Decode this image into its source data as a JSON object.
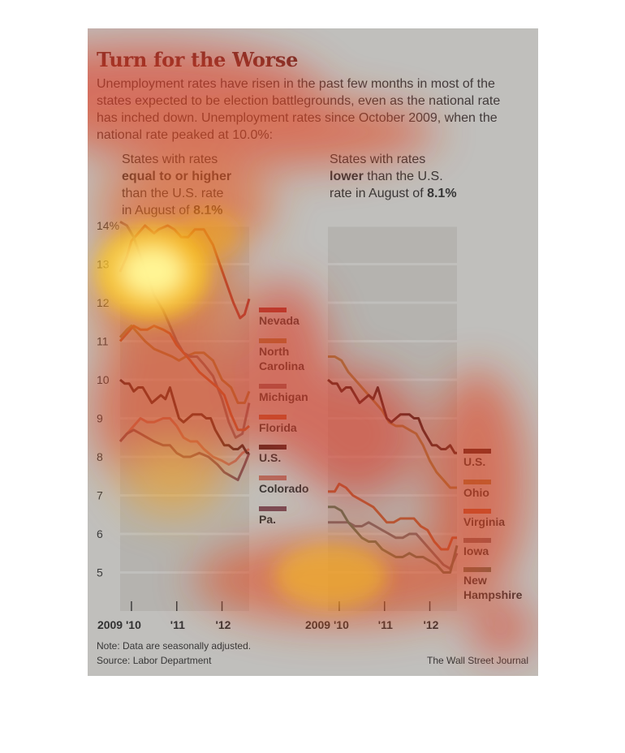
{
  "title": "Turn for the Worse",
  "intro": "Unemployment rates have risen in the past few months in most of the states expected to be election battlegrounds, even as the national rate has inched down. Unemployment rates since October 2009, when the national rate peaked at 10.0%:",
  "left_head": {
    "line1": "States with rates",
    "bold": "equal to or higher",
    "line3": "than the U.S. rate",
    "line4_pre": "in August of ",
    "line4_bold": "8.1%"
  },
  "right_head": {
    "line1": "States with rates",
    "bold": "lower",
    "line2_rest": " than the U.S.",
    "line3_pre": "rate in August of ",
    "line3_bold": "8.1%"
  },
  "footer": {
    "note": "Note: Data are seasonally adjusted.",
    "source": "Source: Labor Department",
    "credit": "The Wall Street Journal"
  },
  "chart_data": [
    {
      "type": "line",
      "title": "States with rates equal to or higher than the U.S. rate in August of 8.1%",
      "ylim": [
        4,
        14
      ],
      "yticks": [
        "5",
        "6",
        "7",
        "8",
        "9",
        "10",
        "11",
        "12",
        "13",
        "14%"
      ],
      "ytick_values": [
        5,
        6,
        7,
        8,
        9,
        10,
        11,
        12,
        13,
        14
      ],
      "xlim": [
        2009.75,
        2012.6
      ],
      "xticks": [
        "2009 '10",
        "'11",
        "'12"
      ],
      "xtick_values": [
        2010,
        2011,
        2012
      ],
      "series": [
        {
          "name": "Nevada",
          "color": "#c5282a",
          "x": [
            2009.75,
            2009.9,
            2010.0,
            2010.15,
            2010.3,
            2010.5,
            2010.6,
            2010.8,
            2010.95,
            2011.1,
            2011.25,
            2011.4,
            2011.6,
            2011.8,
            2011.95,
            2012.1,
            2012.25,
            2012.4,
            2012.5,
            2012.6
          ],
          "y": [
            12.8,
            13.2,
            13.6,
            13.8,
            14.0,
            13.8,
            13.9,
            14.0,
            13.9,
            13.7,
            13.7,
            13.9,
            13.9,
            13.5,
            13.0,
            12.5,
            12.0,
            11.6,
            11.7,
            12.1
          ]
        },
        {
          "name": "North Carolina",
          "color": "#c08a3c",
          "x": [
            2009.75,
            2009.9,
            2010.0,
            2010.15,
            2010.3,
            2010.5,
            2010.7,
            2010.9,
            2011.05,
            2011.2,
            2011.4,
            2011.6,
            2011.8,
            2012.0,
            2012.2,
            2012.35,
            2012.5,
            2012.6
          ],
          "y": [
            11.1,
            11.3,
            11.4,
            11.2,
            11.0,
            10.8,
            10.7,
            10.6,
            10.5,
            10.6,
            10.7,
            10.7,
            10.5,
            10.0,
            9.8,
            9.4,
            9.4,
            9.7
          ]
        },
        {
          "name": "Michigan",
          "color": "#9a6a6e",
          "x": [
            2009.75,
            2009.9,
            2010.05,
            2010.2,
            2010.35,
            2010.5,
            2010.7,
            2010.85,
            2011.0,
            2011.15,
            2011.3,
            2011.45,
            2011.6,
            2011.8,
            2012.0,
            2012.15,
            2012.3,
            2012.45,
            2012.6
          ],
          "y": [
            14.1,
            14.0,
            13.7,
            13.2,
            12.7,
            12.2,
            11.8,
            11.4,
            11.0,
            10.7,
            10.6,
            10.6,
            10.4,
            10.1,
            9.5,
            8.9,
            8.5,
            8.6,
            9.4
          ]
        },
        {
          "name": "Florida",
          "color": "#dc5c2a",
          "x": [
            2009.75,
            2009.9,
            2010.05,
            2010.2,
            2010.35,
            2010.5,
            2010.7,
            2010.85,
            2011.0,
            2011.15,
            2011.3,
            2011.5,
            2011.7,
            2011.9,
            2012.05,
            2012.2,
            2012.35,
            2012.5,
            2012.6
          ],
          "y": [
            11.0,
            11.2,
            11.4,
            11.3,
            11.3,
            11.4,
            11.3,
            11.2,
            10.9,
            10.7,
            10.5,
            10.2,
            10.0,
            9.8,
            9.6,
            9.1,
            8.7,
            8.7,
            8.8
          ]
        },
        {
          "name": "U.S.",
          "color": "#3c0e0e",
          "x": [
            2009.75,
            2009.85,
            2009.95,
            2010.05,
            2010.15,
            2010.25,
            2010.35,
            2010.45,
            2010.55,
            2010.65,
            2010.75,
            2010.85,
            2010.95,
            2011.05,
            2011.15,
            2011.25,
            2011.35,
            2011.45,
            2011.55,
            2011.65,
            2011.75,
            2011.85,
            2011.95,
            2012.05,
            2012.15,
            2012.25,
            2012.35,
            2012.45,
            2012.55,
            2012.6
          ],
          "y": [
            10.0,
            9.9,
            9.9,
            9.7,
            9.8,
            9.8,
            9.6,
            9.4,
            9.5,
            9.6,
            9.5,
            9.8,
            9.4,
            9.0,
            8.9,
            9.0,
            9.1,
            9.1,
            9.1,
            9.0,
            9.0,
            8.7,
            8.5,
            8.3,
            8.3,
            8.2,
            8.2,
            8.3,
            8.1,
            8.1
          ]
        },
        {
          "name": "Colorado",
          "color": "#e07868",
          "x": [
            2009.75,
            2009.9,
            2010.05,
            2010.2,
            2010.35,
            2010.5,
            2010.7,
            2010.85,
            2011.0,
            2011.15,
            2011.3,
            2011.45,
            2011.6,
            2011.8,
            2012.0,
            2012.15,
            2012.3,
            2012.45,
            2012.6
          ],
          "y": [
            8.4,
            8.6,
            8.8,
            9.0,
            8.9,
            8.9,
            9.0,
            9.0,
            8.8,
            8.5,
            8.4,
            8.4,
            8.2,
            8.0,
            7.9,
            7.8,
            7.9,
            8.1,
            8.2
          ]
        },
        {
          "name": "Pa.",
          "color": "#8a4858",
          "x": [
            2009.75,
            2009.9,
            2010.05,
            2010.2,
            2010.35,
            2010.5,
            2010.7,
            2010.85,
            2011.0,
            2011.15,
            2011.3,
            2011.5,
            2011.7,
            2011.9,
            2012.05,
            2012.2,
            2012.35,
            2012.5,
            2012.6
          ],
          "y": [
            8.4,
            8.6,
            8.7,
            8.6,
            8.5,
            8.4,
            8.3,
            8.3,
            8.1,
            8.0,
            8.0,
            8.1,
            8.0,
            7.8,
            7.6,
            7.5,
            7.4,
            7.8,
            8.1
          ]
        }
      ]
    },
    {
      "type": "line",
      "title": "States with rates lower than the U.S. rate in August of 8.1%",
      "ylim": [
        4,
        14
      ],
      "xlim": [
        2009.75,
        2012.6
      ],
      "xticks": [
        "2009 '10",
        "'11",
        "'12"
      ],
      "xtick_values": [
        2010,
        2011,
        2012
      ],
      "series": [
        {
          "name": "U.S.",
          "color": "#3c0e0e",
          "x": [
            2009.75,
            2009.85,
            2009.95,
            2010.05,
            2010.15,
            2010.25,
            2010.35,
            2010.45,
            2010.55,
            2010.65,
            2010.75,
            2010.85,
            2010.95,
            2011.05,
            2011.15,
            2011.25,
            2011.35,
            2011.45,
            2011.55,
            2011.65,
            2011.75,
            2011.85,
            2011.95,
            2012.05,
            2012.15,
            2012.25,
            2012.35,
            2012.45,
            2012.55,
            2012.6
          ],
          "y": [
            10.0,
            9.9,
            9.9,
            9.7,
            9.8,
            9.8,
            9.6,
            9.4,
            9.5,
            9.6,
            9.5,
            9.8,
            9.4,
            9.0,
            8.9,
            9.0,
            9.1,
            9.1,
            9.1,
            9.0,
            9.0,
            8.7,
            8.5,
            8.3,
            8.3,
            8.2,
            8.2,
            8.3,
            8.1,
            8.1
          ]
        },
        {
          "name": "Ohio",
          "color": "#c08a3c",
          "x": [
            2009.75,
            2009.9,
            2010.05,
            2010.2,
            2010.35,
            2010.5,
            2010.65,
            2010.8,
            2010.95,
            2011.1,
            2011.25,
            2011.4,
            2011.55,
            2011.7,
            2011.85,
            2012.0,
            2012.15,
            2012.3,
            2012.45,
            2012.6
          ],
          "y": [
            10.6,
            10.6,
            10.5,
            10.2,
            10.0,
            9.8,
            9.6,
            9.4,
            9.2,
            8.9,
            8.8,
            8.8,
            8.7,
            8.6,
            8.3,
            7.9,
            7.6,
            7.4,
            7.2,
            7.2
          ]
        },
        {
          "name": "Virginia",
          "color": "#dc5c2a",
          "x": [
            2009.75,
            2009.9,
            2010.0,
            2010.15,
            2010.3,
            2010.45,
            2010.6,
            2010.75,
            2010.9,
            2011.05,
            2011.2,
            2011.35,
            2011.5,
            2011.65,
            2011.8,
            2011.95,
            2012.1,
            2012.25,
            2012.4,
            2012.5,
            2012.6
          ],
          "y": [
            7.1,
            7.1,
            7.3,
            7.2,
            7.0,
            6.9,
            6.8,
            6.7,
            6.5,
            6.3,
            6.3,
            6.4,
            6.4,
            6.4,
            6.2,
            6.1,
            5.8,
            5.6,
            5.6,
            5.9,
            5.9
          ]
        },
        {
          "name": "Iowa",
          "color": "#8a7070",
          "x": [
            2009.75,
            2009.9,
            2010.05,
            2010.2,
            2010.35,
            2010.5,
            2010.65,
            2010.8,
            2010.95,
            2011.1,
            2011.25,
            2011.4,
            2011.55,
            2011.7,
            2011.85,
            2012.0,
            2012.15,
            2012.3,
            2012.45,
            2012.6
          ],
          "y": [
            6.3,
            6.3,
            6.3,
            6.3,
            6.2,
            6.2,
            6.3,
            6.2,
            6.1,
            6.0,
            5.9,
            5.9,
            6.0,
            6.0,
            5.8,
            5.6,
            5.4,
            5.2,
            5.1,
            5.5
          ]
        },
        {
          "name": "New Hampshire",
          "color": "#6a7a58",
          "x": [
            2009.75,
            2009.9,
            2010.05,
            2010.2,
            2010.35,
            2010.5,
            2010.65,
            2010.8,
            2010.95,
            2011.1,
            2011.25,
            2011.4,
            2011.55,
            2011.7,
            2011.85,
            2012.0,
            2012.15,
            2012.3,
            2012.45,
            2012.6
          ],
          "y": [
            6.7,
            6.7,
            6.6,
            6.3,
            6.1,
            5.9,
            5.8,
            5.8,
            5.6,
            5.5,
            5.4,
            5.4,
            5.5,
            5.4,
            5.4,
            5.3,
            5.2,
            5.0,
            5.0,
            5.7
          ]
        }
      ]
    }
  ]
}
